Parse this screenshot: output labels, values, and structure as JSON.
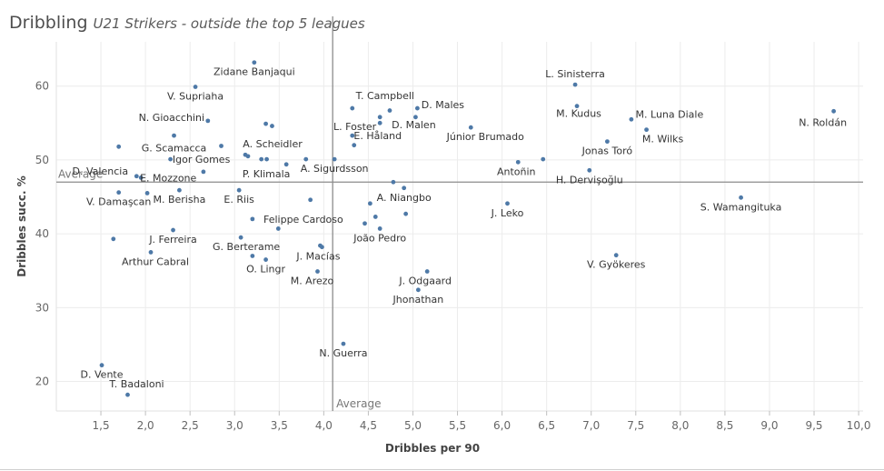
{
  "header": {
    "title": "Dribbling",
    "subtitle": "U21 Strikers - outside the top 5 leagues"
  },
  "colors": {
    "point": "#4e79a7",
    "text": "#333333",
    "axis_text": "#666666",
    "grid": "#ececec",
    "reference_line": "#8c8c8c"
  },
  "chart_data": {
    "type": "scatter",
    "xlabel": "Dribbles per 90",
    "ylabel": "Dribbles succ. %",
    "xlim": [
      1.0,
      10.05
    ],
    "ylim": [
      16,
      66
    ],
    "xticks": [
      1.5,
      2.0,
      2.5,
      3.0,
      3.5,
      4.0,
      4.5,
      5.0,
      5.5,
      6.0,
      6.5,
      7.0,
      7.5,
      8.0,
      8.5,
      9.0,
      9.5,
      10.0
    ],
    "xtick_labels": [
      "1,5",
      "2,0",
      "2,5",
      "3,0",
      "3,5",
      "4,0",
      "4,5",
      "5,0",
      "5,5",
      "6,0",
      "6,5",
      "7,0",
      "7,5",
      "8,0",
      "8,5",
      "9,0",
      "9,5",
      "10,0"
    ],
    "yticks": [
      20,
      30,
      40,
      50,
      60
    ],
    "ytick_labels": [
      "20",
      "30",
      "40",
      "50",
      "60"
    ],
    "grid": true,
    "reference_lines": [
      {
        "axis": "x",
        "value": 4.1,
        "label": "Average"
      },
      {
        "axis": "y",
        "value": 47.0,
        "label": "Average"
      }
    ],
    "points": [
      {
        "x": 3.22,
        "y": 63.2,
        "label": "Zidane Banjaqui"
      },
      {
        "x": 2.56,
        "y": 59.9,
        "label": "V. Supriaha"
      },
      {
        "x": 2.7,
        "y": 55.3,
        "label": "N. Gioacchini"
      },
      {
        "x": 3.35,
        "y": 54.9,
        "label": ""
      },
      {
        "x": 3.42,
        "y": 54.6,
        "label": ""
      },
      {
        "x": 2.32,
        "y": 53.3,
        "label": ""
      },
      {
        "x": 1.7,
        "y": 51.8,
        "label": ""
      },
      {
        "x": 2.85,
        "y": 51.9,
        "label": "G. Scamacca"
      },
      {
        "x": 3.12,
        "y": 50.7,
        "label": "A. Scheidler"
      },
      {
        "x": 3.15,
        "y": 50.5,
        "label": ""
      },
      {
        "x": 2.28,
        "y": 50.1,
        "label": "Igor Gomes"
      },
      {
        "x": 3.3,
        "y": 50.1,
        "label": ""
      },
      {
        "x": 3.36,
        "y": 50.1,
        "label": ""
      },
      {
        "x": 3.58,
        "y": 49.4,
        "label": "P. Klimala"
      },
      {
        "x": 3.8,
        "y": 50.1,
        "label": ""
      },
      {
        "x": 4.12,
        "y": 50.1,
        "label": "A. Sigurdsson"
      },
      {
        "x": 2.65,
        "y": 48.4,
        "label": ""
      },
      {
        "x": 1.9,
        "y": 47.8,
        "label": "D. Valencia"
      },
      {
        "x": 1.95,
        "y": 47.6,
        "label": "E. Mozzone"
      },
      {
        "x": 2.38,
        "y": 45.9,
        "label": "M. Berisha"
      },
      {
        "x": 1.7,
        "y": 45.6,
        "label": "V. Damaşcan"
      },
      {
        "x": 2.02,
        "y": 45.5,
        "label": ""
      },
      {
        "x": 3.05,
        "y": 45.9,
        "label": "E. Riis"
      },
      {
        "x": 3.85,
        "y": 44.6,
        "label": ""
      },
      {
        "x": 4.32,
        "y": 57.0,
        "label": "T. Campbell"
      },
      {
        "x": 4.63,
        "y": 55.8,
        "label": "L. Foster"
      },
      {
        "x": 4.74,
        "y": 56.7,
        "label": ""
      },
      {
        "x": 5.05,
        "y": 57.0,
        "label": "D. Males"
      },
      {
        "x": 5.03,
        "y": 55.8,
        "label": "D. Malen"
      },
      {
        "x": 4.63,
        "y": 55.0,
        "label": ""
      },
      {
        "x": 5.65,
        "y": 54.4,
        "label": "Júnior Brumado"
      },
      {
        "x": 4.32,
        "y": 53.3,
        "label": "E. Håland"
      },
      {
        "x": 4.34,
        "y": 52.0,
        "label": ""
      },
      {
        "x": 4.78,
        "y": 47.0,
        "label": ""
      },
      {
        "x": 4.9,
        "y": 46.2,
        "label": "A. Niangbo"
      },
      {
        "x": 4.52,
        "y": 44.1,
        "label": ""
      },
      {
        "x": 4.92,
        "y": 42.7,
        "label": ""
      },
      {
        "x": 4.58,
        "y": 42.3,
        "label": ""
      },
      {
        "x": 4.46,
        "y": 41.4,
        "label": ""
      },
      {
        "x": 4.63,
        "y": 40.7,
        "label": "João Pedro"
      },
      {
        "x": 3.2,
        "y": 42.0,
        "label": "Felippe Cardoso"
      },
      {
        "x": 3.49,
        "y": 40.7,
        "label": ""
      },
      {
        "x": 2.31,
        "y": 40.5,
        "label": "J. Ferreira"
      },
      {
        "x": 1.64,
        "y": 39.3,
        "label": ""
      },
      {
        "x": 3.07,
        "y": 39.5,
        "label": "G. Berterame"
      },
      {
        "x": 3.96,
        "y": 38.4,
        "label": ""
      },
      {
        "x": 3.98,
        "y": 38.2,
        "label": "J. Macías"
      },
      {
        "x": 2.06,
        "y": 37.5,
        "label": "Arthur Cabral"
      },
      {
        "x": 3.2,
        "y": 37.0,
        "label": ""
      },
      {
        "x": 3.35,
        "y": 36.5,
        "label": "O. Lingr"
      },
      {
        "x": 3.93,
        "y": 34.9,
        "label": "M. Arezo"
      },
      {
        "x": 5.16,
        "y": 34.9,
        "label": "J. Odgaard"
      },
      {
        "x": 5.06,
        "y": 32.4,
        "label": "Jhonathan"
      },
      {
        "x": 4.22,
        "y": 25.1,
        "label": "N. Guerra"
      },
      {
        "x": 1.51,
        "y": 22.2,
        "label": "D. Vente"
      },
      {
        "x": 1.8,
        "y": 18.2,
        "label": "T. Badaloni"
      },
      {
        "x": 6.82,
        "y": 60.2,
        "label": "L. Sinisterra"
      },
      {
        "x": 6.84,
        "y": 57.3,
        "label": "M. Kudus"
      },
      {
        "x": 7.45,
        "y": 55.5,
        "label": "M. Luna Diale"
      },
      {
        "x": 7.62,
        "y": 54.1,
        "label": "M. Wilks"
      },
      {
        "x": 7.18,
        "y": 52.5,
        "label": "Jonas Toró"
      },
      {
        "x": 6.18,
        "y": 49.7,
        "label": "Antoñin"
      },
      {
        "x": 6.46,
        "y": 50.1,
        "label": ""
      },
      {
        "x": 6.98,
        "y": 48.6,
        "label": "H. Dervişoğlu"
      },
      {
        "x": 6.06,
        "y": 44.1,
        "label": "J. Leko"
      },
      {
        "x": 8.68,
        "y": 44.9,
        "label": "S. Wamangituka"
      },
      {
        "x": 7.28,
        "y": 37.1,
        "label": "V. Gyökeres"
      },
      {
        "x": 9.72,
        "y": 56.6,
        "label": "N. Roldán"
      }
    ]
  }
}
